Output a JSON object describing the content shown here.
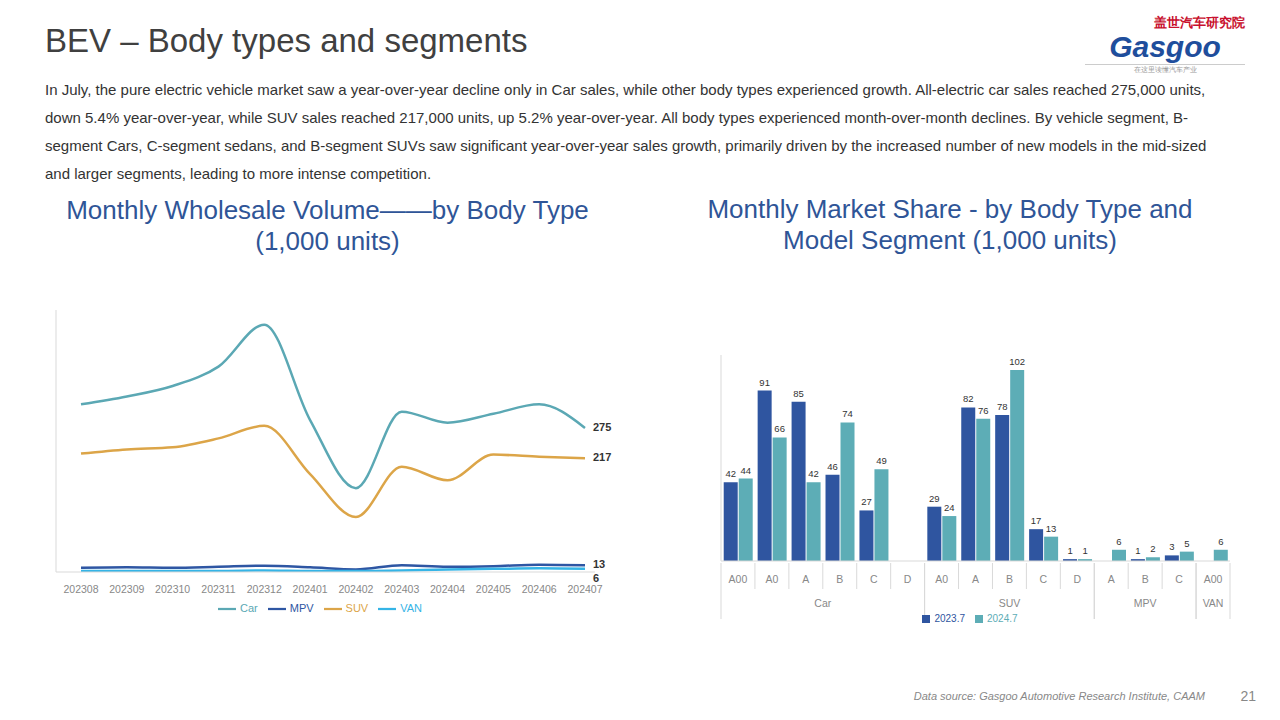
{
  "page": {
    "title": "BEV – Body types and segments",
    "text": "In July, the pure electric vehicle market saw a year-over-year decline only in Car sales, while other body types experienced growth. All-electric car sales reached 275,000 units, down 5.4% year-over-year, while SUV sales reached 217,000 units, up 5.2% year-over-year. All body types experienced month-over-month declines. By vehicle segment, B-segment Cars, C-segment sedans, and B-segment SUVs saw significant year-over-year sales growth, primarily driven by the increased number of new models in the mid-sized and larger segments, leading to more intense competition.",
    "source": "Data source: Gasgoo Automotive Research Institute, CAAM",
    "page_number": "21",
    "logo": {
      "name": "盖世汽车研究院",
      "brand": "Gasgoo",
      "tagline": "在这里读懂汽车产业"
    }
  },
  "chart_data": [
    {
      "type": "line",
      "title": "Monthly Wholesale Volume——by Body Type\n(1,000 units)",
      "categories": [
        "202308",
        "202309",
        "202310",
        "202311",
        "202312",
        "202401",
        "202402",
        "202403",
        "202404",
        "202405",
        "202406",
        "202407"
      ],
      "series": [
        {
          "name": "Car",
          "color": "#5BA8B4",
          "values": [
            320,
            335,
            355,
            392,
            472,
            290,
            160,
            306,
            285,
            302,
            320,
            275
          ],
          "value_labels": [
            null,
            null,
            null,
            null,
            null,
            null,
            null,
            null,
            null,
            null,
            null,
            "275"
          ]
        },
        {
          "name": "SUV",
          "color": "#DCA548",
          "values": [
            226,
            234,
            238,
            255,
            279,
            187,
            105,
            201,
            175,
            224,
            220,
            217
          ],
          "value_labels": [
            null,
            null,
            null,
            null,
            null,
            null,
            null,
            null,
            null,
            null,
            null,
            "217"
          ]
        },
        {
          "name": "MPV",
          "color": "#2E56A3",
          "values": [
            8,
            9,
            8,
            10,
            12,
            9,
            5,
            13,
            10,
            11,
            14,
            13
          ],
          "value_labels": [
            null,
            null,
            null,
            null,
            null,
            null,
            null,
            null,
            null,
            null,
            null,
            "13"
          ]
        },
        {
          "name": "VAN",
          "color": "#35B4E6",
          "values": [
            2,
            2,
            2,
            2,
            3,
            2,
            2,
            3,
            5,
            6,
            7,
            6
          ],
          "value_labels": [
            null,
            null,
            null,
            null,
            null,
            null,
            null,
            null,
            null,
            null,
            null,
            "6"
          ]
        }
      ],
      "ylim": [
        0,
        500
      ],
      "tick_labels": "x",
      "grid": false,
      "legend": "bottom",
      "line_style": "smooth"
    },
    {
      "type": "bar",
      "title": "Monthly Market Share - by Body Type and\nModel Segment (1,000 units)",
      "categories": [
        "A00",
        "A0",
        "A",
        "B",
        "C",
        "D",
        "A0",
        "A",
        "B",
        "C",
        "D",
        "A",
        "B",
        "C",
        "A00"
      ],
      "groups": [
        "Car",
        "Car",
        "Car",
        "Car",
        "Car",
        "Car",
        "SUV",
        "SUV",
        "SUV",
        "SUV",
        "SUV",
        "MPV",
        "MPV",
        "MPV",
        "VAN"
      ],
      "series": [
        {
          "name": "2023.7",
          "color": "#2F55A0",
          "values": [
            42,
            91,
            85,
            46,
            27,
            null,
            29,
            82,
            78,
            17,
            1,
            null,
            1,
            3,
            null
          ]
        },
        {
          "name": "2024.7",
          "color": "#5DADB6",
          "values": [
            44,
            66,
            42,
            74,
            49,
            0,
            24,
            76,
            102,
            13,
            1,
            6,
            2,
            5,
            6
          ]
        }
      ],
      "ylim": [
        0,
        110
      ],
      "tick_labels": "x",
      "grid": false,
      "legend": "bottom",
      "data_labels": true
    }
  ]
}
